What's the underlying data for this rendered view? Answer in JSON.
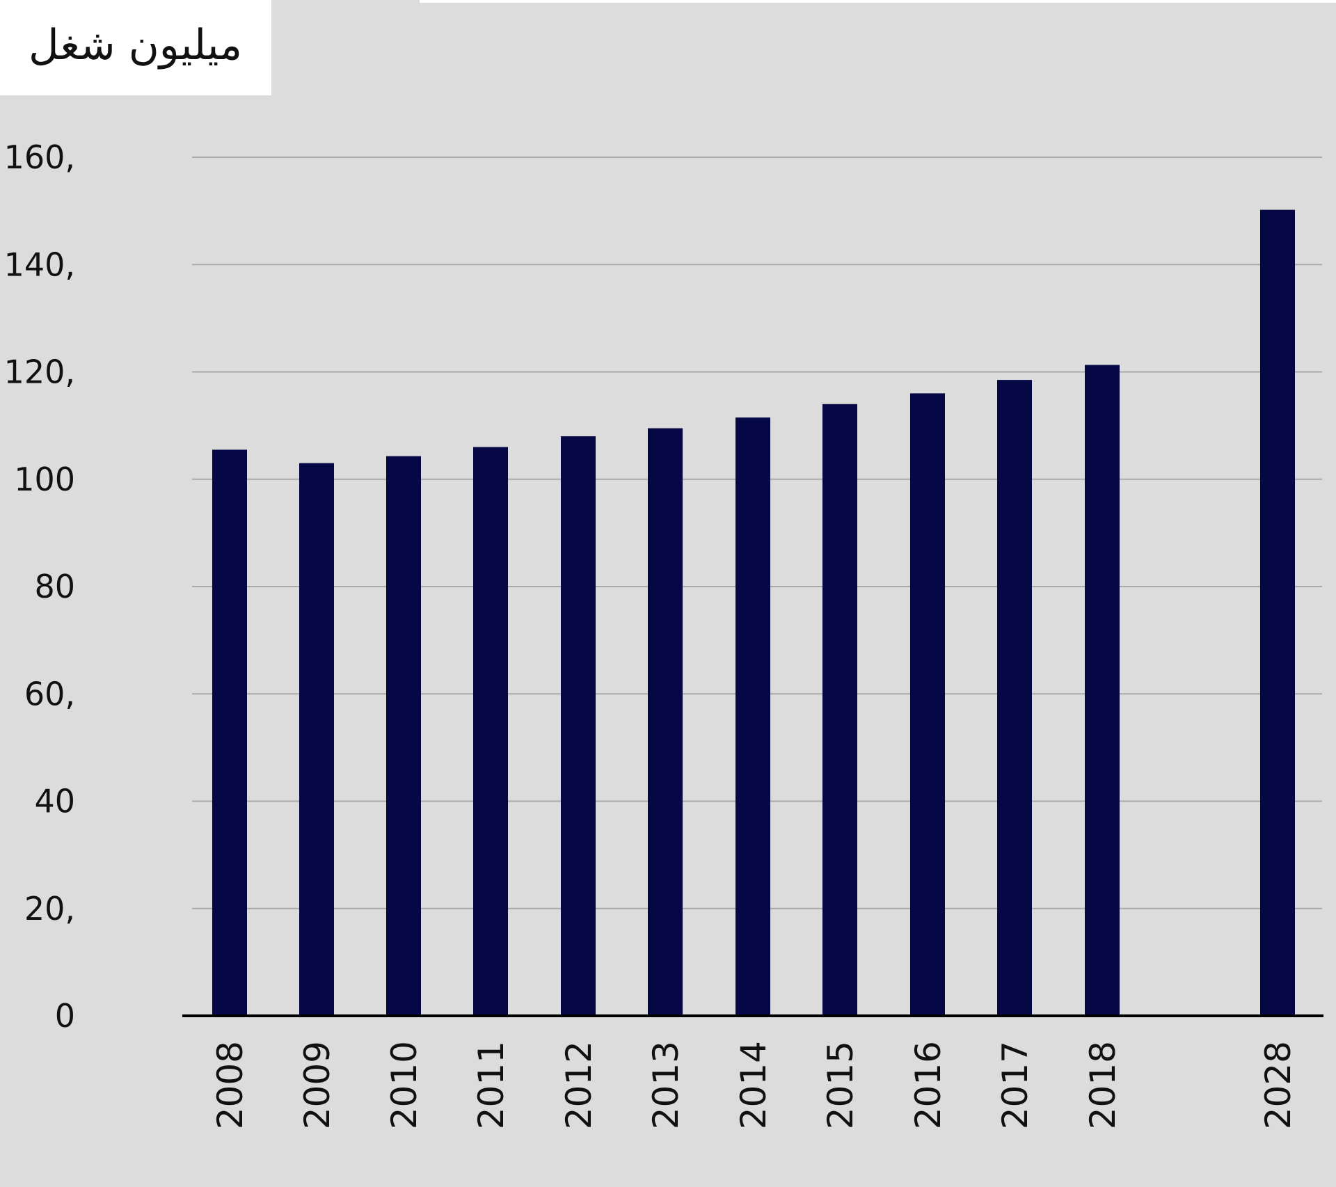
{
  "chart_data": {
    "type": "bar",
    "title": "میلیون شغل",
    "categories": [
      "2008",
      "2009",
      "2010",
      "2011",
      "2012",
      "2013",
      "2014",
      "2015",
      "2016",
      "2017",
      "2018",
      "2028"
    ],
    "values": [
      105.5,
      103,
      104.3,
      106,
      108,
      109.5,
      111.5,
      114,
      116,
      118.5,
      121.3,
      150.2
    ],
    "ylim": [
      0,
      160
    ],
    "yticks": [
      {
        "value": 0,
        "label": "0"
      },
      {
        "value": 20,
        "label": "20,"
      },
      {
        "value": 40,
        "label": "40"
      },
      {
        "value": 60,
        "label": "60,"
      },
      {
        "value": 80,
        "label": "80"
      },
      {
        "value": 100,
        "label": "100"
      },
      {
        "value": 120,
        "label": "120,"
      },
      {
        "value": 140,
        "label": "140,"
      },
      {
        "value": 160,
        "label": "160,"
      }
    ],
    "grid": true,
    "bar_color": "#050845",
    "background": "#dcdcdc"
  }
}
